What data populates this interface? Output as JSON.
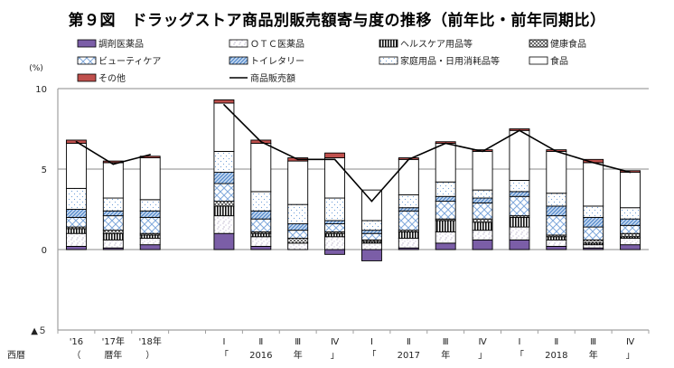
{
  "title": "第９図　ドラッグストア商品別販売額寄与度の推移（前年比・前年同期比）",
  "chart_data": {
    "type": "bar",
    "stacked": true,
    "title": "第９図　ドラッグストア商品別販売額寄与度の推移（前年比・前年同期比）",
    "ylabel": "(%)",
    "ylim": [
      -5,
      10
    ],
    "yticks": [
      {
        "value": 10,
        "label": "10"
      },
      {
        "value": 5,
        "label": "5"
      },
      {
        "value": 0,
        "label": "0"
      },
      {
        "value": -5,
        "label": "▲５"
      }
    ],
    "grid": true,
    "legend_position": "top",
    "xaxis_row_label": "西暦",
    "categories": [
      "'16",
      "'17",
      "'18",
      "",
      "I",
      "II",
      "III",
      "IV",
      "I",
      "II",
      "III",
      "IV",
      "I",
      "II",
      "III",
      "IV"
    ],
    "category_sublabels": [
      "（",
      "暦年",
      "）",
      "",
      "「",
      "2016",
      "年",
      "」",
      "「",
      "2017",
      "年",
      "」",
      "「",
      "2018",
      "年",
      "」"
    ],
    "category_label_rows": [
      [
        "'16",
        "'17年",
        "'18年",
        "",
        "Ⅰ",
        "Ⅱ",
        "Ⅲ",
        "Ⅳ",
        "Ⅰ",
        "Ⅱ",
        "Ⅲ",
        "Ⅳ",
        "Ⅰ",
        "Ⅱ",
        "Ⅲ",
        "Ⅳ"
      ],
      [
        "（",
        "暦年",
        "）",
        "",
        "「",
        "2016",
        "年",
        "」",
        "「",
        "2017",
        "年",
        "」",
        "「",
        "2018",
        "年",
        "」"
      ]
    ],
    "series": [
      {
        "name": "調剤医薬品",
        "key": "chozai",
        "pattern": "solid",
        "color": "#7b5ea7",
        "values": [
          0.2,
          0.1,
          0.3,
          null,
          1.0,
          0.2,
          0.0,
          -0.3,
          -0.7,
          0.1,
          0.4,
          0.6,
          0.6,
          0.2,
          0.1,
          0.3
        ]
      },
      {
        "name": "ＯＴＣ医薬品",
        "key": "otc",
        "pattern": "speckle",
        "color": "#8a7aa8",
        "values": [
          0.8,
          0.5,
          0.4,
          null,
          1.1,
          0.6,
          0.4,
          0.8,
          0.4,
          0.6,
          0.7,
          0.6,
          0.8,
          0.4,
          0.2,
          0.4
        ]
      },
      {
        "name": "ヘルスケア用品等",
        "key": "health",
        "pattern": "vstripe",
        "color": "#000000",
        "values": [
          0.3,
          0.4,
          0.2,
          null,
          0.6,
          0.2,
          0.0,
          0.2,
          0.1,
          0.4,
          0.7,
          0.5,
          0.6,
          0.2,
          0.1,
          0.1
        ]
      },
      {
        "name": "健康食品",
        "key": "kenko",
        "pattern": "crosshatch",
        "color": "#333333",
        "values": [
          0.1,
          0.2,
          0.1,
          null,
          0.3,
          0.1,
          0.3,
          0.1,
          0.1,
          0.1,
          0.1,
          0.2,
          0.1,
          0.1,
          0.2,
          0.2
        ]
      },
      {
        "name": "ビューティケア",
        "key": "beauty",
        "pattern": "diamond",
        "color": "#6f9fd8",
        "values": [
          0.6,
          0.9,
          1.0,
          null,
          1.1,
          0.8,
          0.5,
          0.5,
          0.4,
          1.2,
          1.1,
          1.0,
          1.2,
          1.2,
          0.8,
          0.5
        ]
      },
      {
        "name": "トイレタリー",
        "key": "toiletry",
        "pattern": "diagonal",
        "color": "#5b8fcf",
        "values": [
          0.5,
          0.3,
          0.4,
          null,
          0.7,
          0.5,
          0.4,
          0.2,
          0.2,
          0.2,
          0.3,
          0.3,
          0.3,
          0.6,
          0.6,
          0.4
        ]
      },
      {
        "name": "家庭用品・日用消耗品等",
        "key": "katei",
        "pattern": "dots",
        "color": "#8fb3e0",
        "values": [
          1.3,
          0.8,
          0.7,
          null,
          1.3,
          1.2,
          1.2,
          1.4,
          0.6,
          0.8,
          0.9,
          0.5,
          0.7,
          0.8,
          0.7,
          0.7
        ]
      },
      {
        "name": "食品",
        "key": "food",
        "pattern": "none",
        "color": "#ffffff",
        "values": [
          2.8,
          2.2,
          2.6,
          null,
          3.0,
          3.0,
          2.7,
          2.5,
          1.9,
          2.2,
          2.4,
          2.4,
          3.1,
          2.6,
          2.7,
          2.2
        ]
      },
      {
        "name": "その他",
        "key": "other",
        "pattern": "solid",
        "color": "#c0504d",
        "values": [
          0.2,
          0.1,
          0.1,
          null,
          0.2,
          0.2,
          0.2,
          0.3,
          0.0,
          0.1,
          0.1,
          0.1,
          0.1,
          0.1,
          0.2,
          0.1
        ]
      }
    ],
    "line_series": {
      "name": "商品販売額",
      "color": "#000000",
      "segments": [
        {
          "indices": [
            0,
            1,
            2
          ],
          "values": [
            6.7,
            5.3,
            5.9
          ]
        },
        {
          "indices": [
            4,
            5,
            6,
            7,
            8,
            9,
            10,
            11,
            12,
            13,
            14,
            15
          ],
          "values": [
            9.0,
            6.7,
            5.6,
            5.6,
            3.0,
            5.6,
            6.6,
            6.1,
            7.4,
            6.1,
            5.4,
            4.8
          ]
        }
      ]
    }
  },
  "legend": [
    {
      "label": "調剤医薬品",
      "key": "chozai"
    },
    {
      "label": "ＯＴＣ医薬品",
      "key": "otc"
    },
    {
      "label": "ヘルスケア用品等",
      "key": "health"
    },
    {
      "label": "健康食品",
      "key": "kenko"
    },
    {
      "label": "ビューティケア",
      "key": "beauty"
    },
    {
      "label": "トイレタリー",
      "key": "toiletry"
    },
    {
      "label": "家庭用品・日用消耗品等",
      "key": "katei"
    },
    {
      "label": "食品",
      "key": "food"
    },
    {
      "label": "その他",
      "key": "other"
    },
    {
      "label": "商品販売額",
      "key": "line"
    }
  ]
}
